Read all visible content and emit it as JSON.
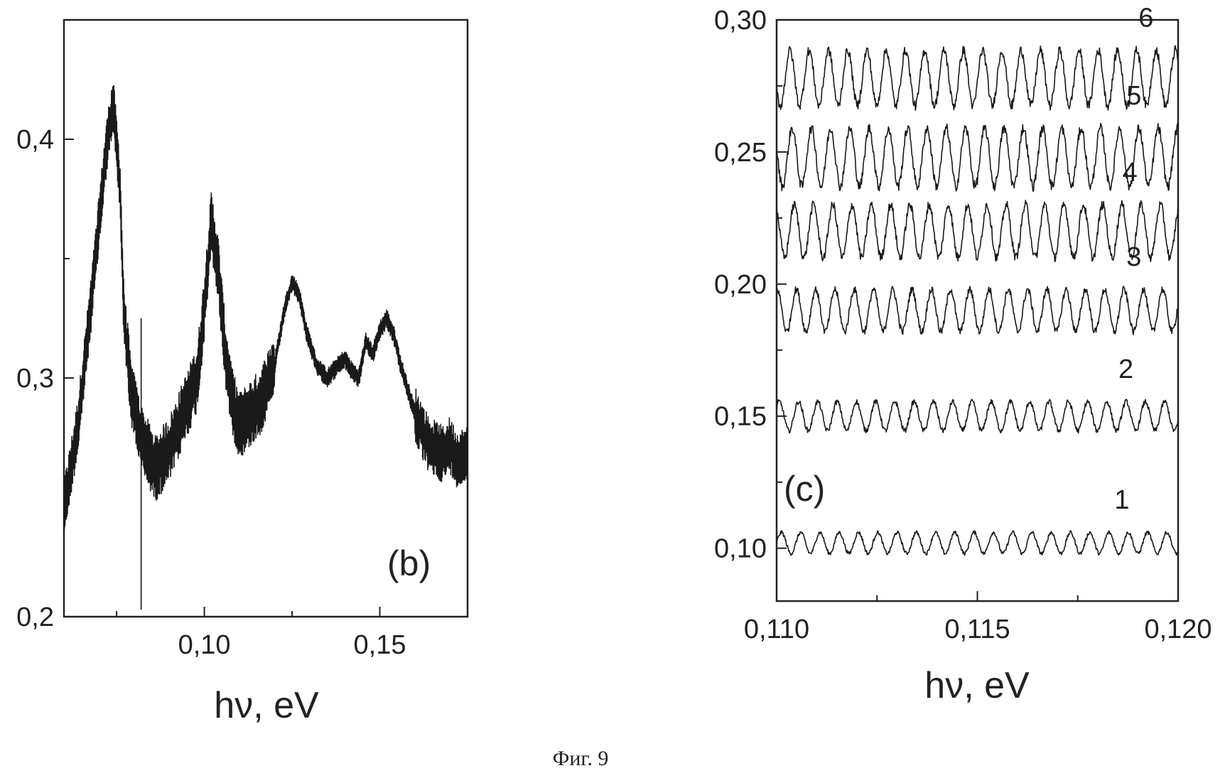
{
  "chart_data": [
    {
      "type": "line",
      "panel_label": "(b)",
      "xlabel": "hν, eV",
      "ylabel": "",
      "xlim": [
        0.06,
        0.175
      ],
      "ylim": [
        0.2,
        0.45
      ],
      "x_ticks": [
        0.1,
        0.15
      ],
      "x_tick_labels": [
        "0,10",
        "0,15"
      ],
      "y_ticks": [
        0.2,
        0.3,
        0.4
      ],
      "y_tick_labels": [
        "0,2",
        "0,3",
        "0,4"
      ],
      "series": [
        {
          "x": [
            0.06,
            0.064,
            0.068,
            0.072,
            0.074,
            0.076,
            0.077,
            0.079,
            0.082,
            0.086,
            0.09,
            0.094,
            0.098,
            0.1,
            0.102,
            0.104,
            0.106,
            0.108,
            0.11,
            0.113,
            0.116,
            0.12,
            0.123,
            0.125,
            0.127,
            0.129,
            0.132,
            0.135,
            0.138,
            0.14,
            0.142,
            0.144,
            0.146,
            0.148,
            0.15,
            0.152,
            0.154,
            0.156,
            0.158,
            0.16,
            0.162,
            0.164,
            0.166,
            0.168,
            0.17,
            0.172,
            0.175
          ],
          "y": [
            0.245,
            0.28,
            0.335,
            0.395,
            0.415,
            0.38,
            0.33,
            0.295,
            0.275,
            0.262,
            0.27,
            0.285,
            0.3,
            0.33,
            0.365,
            0.345,
            0.31,
            0.29,
            0.28,
            0.285,
            0.29,
            0.305,
            0.33,
            0.34,
            0.335,
            0.32,
            0.305,
            0.3,
            0.305,
            0.308,
            0.303,
            0.3,
            0.315,
            0.31,
            0.32,
            0.325,
            0.318,
            0.305,
            0.295,
            0.285,
            0.278,
            0.272,
            0.27,
            0.268,
            0.272,
            0.266,
            0.268
          ]
        }
      ],
      "annotation": "vertical spike at x ≈ 0.082"
    },
    {
      "type": "line",
      "panel_label": "(c)",
      "xlabel": "hν, eV",
      "ylabel": "",
      "xlim": [
        0.11,
        0.12
      ],
      "ylim": [
        0.08,
        0.3
      ],
      "x_ticks": [
        0.11,
        0.115,
        0.12
      ],
      "x_tick_labels": [
        "0,110",
        "0,115",
        "0,120"
      ],
      "y_ticks": [
        0.1,
        0.15,
        0.2,
        0.25,
        0.3
      ],
      "y_tick_labels": [
        "0,10",
        "0,15",
        "0,20",
        "0,25",
        "0,30"
      ],
      "fringe_period_eV": 0.00048,
      "series": [
        {
          "name": "1",
          "mean": 0.102,
          "amplitude": 0.004
        },
        {
          "name": "2",
          "mean": 0.15,
          "amplitude": 0.0055
        },
        {
          "name": "3",
          "mean": 0.19,
          "amplitude": 0.008
        },
        {
          "name": "4",
          "mean": 0.22,
          "amplitude": 0.01
        },
        {
          "name": "5",
          "mean": 0.248,
          "amplitude": 0.011
        },
        {
          "name": "6",
          "mean": 0.278,
          "amplitude": 0.0105
        }
      ]
    }
  ],
  "caption": "Фиг. 9"
}
